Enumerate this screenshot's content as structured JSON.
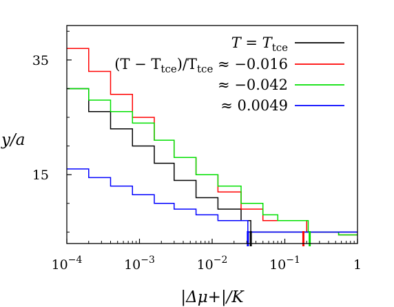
{
  "chart_data": {
    "type": "line",
    "xscale": "log",
    "xlabel": "|Δμ+|/K",
    "ylabel": "y/a",
    "xlim": [
      0.0001,
      1
    ],
    "ylim": [
      3,
      41
    ],
    "xticks": [
      {
        "value": 0.0001,
        "mant": "10",
        "exp": "−4"
      },
      {
        "value": 0.001,
        "mant": "10",
        "exp": "−3"
      },
      {
        "value": 0.01,
        "mant": "10",
        "exp": "−2"
      },
      {
        "value": 0.1,
        "mant": "10",
        "exp": "−1"
      },
      {
        "value": 1,
        "mant": "1",
        "exp": ""
      }
    ],
    "yticks": [
      {
        "value": 15,
        "label": "15"
      },
      {
        "value": 35,
        "label": "35"
      }
    ],
    "legend_position": "top-right",
    "series": [
      {
        "name": "T = Ttce",
        "color": "#000000",
        "x": [
          0.0001,
          0.0002,
          0.0004,
          0.0008,
          0.0016,
          0.003,
          0.006,
          0.012,
          0.025,
          0.034,
          1
        ],
        "y": [
          30,
          26,
          23,
          20,
          17,
          14,
          11,
          9,
          7,
          5,
          5
        ],
        "marker_x": 0.034
      },
      {
        "name": "(T − Ttce)/Ttce ≈ −0.016",
        "color": "#ff0000",
        "x": [
          0.0001,
          0.0002,
          0.0004,
          0.0008,
          0.0016,
          0.003,
          0.006,
          0.012,
          0.025,
          0.05,
          0.2,
          0.55,
          1
        ],
        "y": [
          37,
          33,
          29,
          25,
          21,
          18,
          15,
          12,
          9,
          7,
          5,
          4.5,
          4.5
        ],
        "marker_x": 0.18
      },
      {
        "name": "≈ −0.042",
        "color": "#00e000",
        "x": [
          0.0001,
          0.0002,
          0.0004,
          0.0008,
          0.0016,
          0.003,
          0.006,
          0.012,
          0.025,
          0.05,
          0.08,
          0.21,
          0.55,
          1
        ],
        "y": [
          30,
          28,
          26,
          24,
          21,
          18,
          15,
          13,
          10,
          8,
          7,
          5,
          4.5,
          4.5
        ],
        "marker_x": 0.22
      },
      {
        "name": "≈ 0.0049",
        "color": "#0000ff",
        "x": [
          0.0001,
          0.0002,
          0.0004,
          0.0008,
          0.0016,
          0.003,
          0.006,
          0.012,
          0.031,
          1
        ],
        "y": [
          16,
          14.5,
          13,
          11.5,
          10,
          9,
          8,
          7,
          5,
          5
        ],
        "marker_x": 0.031
      }
    ],
    "legend": [
      {
        "base": "T",
        "rel": " = ",
        "sub_base": "T",
        "sub": "tce",
        "suffix": "",
        "series": 0
      },
      {
        "base": "(T − T",
        "sub": "tce",
        "mid": ")/T",
        "sub2": "tce",
        "suffix": " ≈ −0.016",
        "series": 1
      },
      {
        "text": "≈ −0.042",
        "series": 2
      },
      {
        "text": "≈ 0.0049",
        "series": 3
      }
    ]
  }
}
